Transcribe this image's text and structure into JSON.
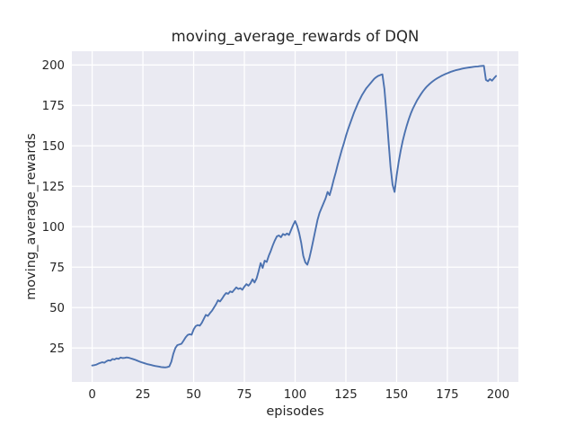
{
  "figure": {
    "background_color": "#ffffff",
    "plot_background_color": "#eaeaf2",
    "grid_color": "#ffffff",
    "text_color": "#262626",
    "line_color": "#4c72b0"
  },
  "chart_data": {
    "type": "line",
    "title": "moving_average_rewards of DQN",
    "xlabel": "episodes",
    "ylabel": "moving_average_rewards",
    "grid": true,
    "legend": false,
    "xlim": [
      -10,
      210
    ],
    "ylim": [
      4,
      208.5
    ],
    "x_ticks": [
      0,
      25,
      50,
      75,
      100,
      125,
      150,
      175,
      200
    ],
    "y_ticks": [
      25,
      50,
      75,
      100,
      125,
      150,
      175,
      200
    ],
    "series": [
      {
        "name": "moving_average_rewards",
        "color": "#4c72b0",
        "x_start": 0,
        "x_step": 1,
        "n_points": 200,
        "y": [
          14.2,
          14.4,
          14.7,
          15.3,
          15.8,
          16.2,
          15.9,
          16.8,
          17.4,
          17.2,
          18.2,
          17.9,
          18.6,
          18.3,
          19.1,
          18.8,
          18.9,
          19.2,
          19.0,
          18.6,
          18.2,
          17.8,
          17.3,
          16.8,
          16.3,
          15.9,
          15.5,
          15.1,
          14.8,
          14.5,
          14.2,
          13.9,
          13.7,
          13.5,
          13.2,
          13.1,
          13.0,
          13.2,
          13.6,
          16.5,
          21.5,
          25.0,
          26.8,
          27.2,
          27.6,
          29.5,
          31.5,
          33.0,
          33.5,
          33.2,
          36.5,
          38.5,
          39.2,
          38.8,
          40.5,
          43.0,
          45.5,
          44.8,
          46.5,
          48.0,
          50.0,
          52.0,
          54.5,
          53.8,
          55.5,
          57.5,
          59.0,
          58.5,
          60.0,
          59.5,
          61.0,
          62.5,
          61.5,
          62.0,
          61.0,
          63.0,
          64.5,
          63.5,
          65.0,
          67.5,
          65.5,
          68.0,
          72.5,
          77.5,
          74.5,
          79.0,
          78.2,
          82.0,
          85.0,
          88.5,
          91.5,
          94.0,
          94.6,
          93.5,
          95.5,
          94.8,
          95.8,
          94.9,
          98.0,
          101.0,
          103.5,
          100.5,
          96.0,
          90.0,
          82.0,
          78.0,
          76.5,
          80.5,
          86.0,
          92.0,
          98.0,
          104.0,
          108.5,
          111.5,
          114.5,
          117.5,
          121.5,
          119.5,
          124.0,
          129.0,
          133.5,
          138.5,
          143.0,
          147.5,
          151.5,
          156.0,
          160.0,
          163.5,
          167.0,
          170.5,
          173.5,
          176.5,
          179.0,
          181.5,
          183.5,
          185.5,
          187.0,
          188.5,
          190.0,
          191.5,
          192.5,
          193.3,
          193.8,
          194.2,
          185.0,
          170.0,
          153.0,
          137.0,
          126.0,
          121.5,
          131.5,
          140.0,
          147.0,
          153.0,
          158.0,
          162.5,
          166.5,
          170.0,
          173.0,
          175.5,
          178.0,
          180.0,
          182.0,
          183.8,
          185.4,
          186.8,
          188.0,
          189.1,
          190.1,
          191.0,
          191.8,
          192.5,
          193.2,
          193.8,
          194.4,
          194.9,
          195.4,
          195.9,
          196.3,
          196.7,
          197.0,
          197.3,
          197.6,
          197.9,
          198.1,
          198.3,
          198.5,
          198.7,
          198.9,
          199.0,
          199.1,
          199.3,
          199.4,
          199.5,
          190.8,
          190.0,
          191.3,
          190.3,
          191.8,
          193.2
        ]
      }
    ]
  }
}
